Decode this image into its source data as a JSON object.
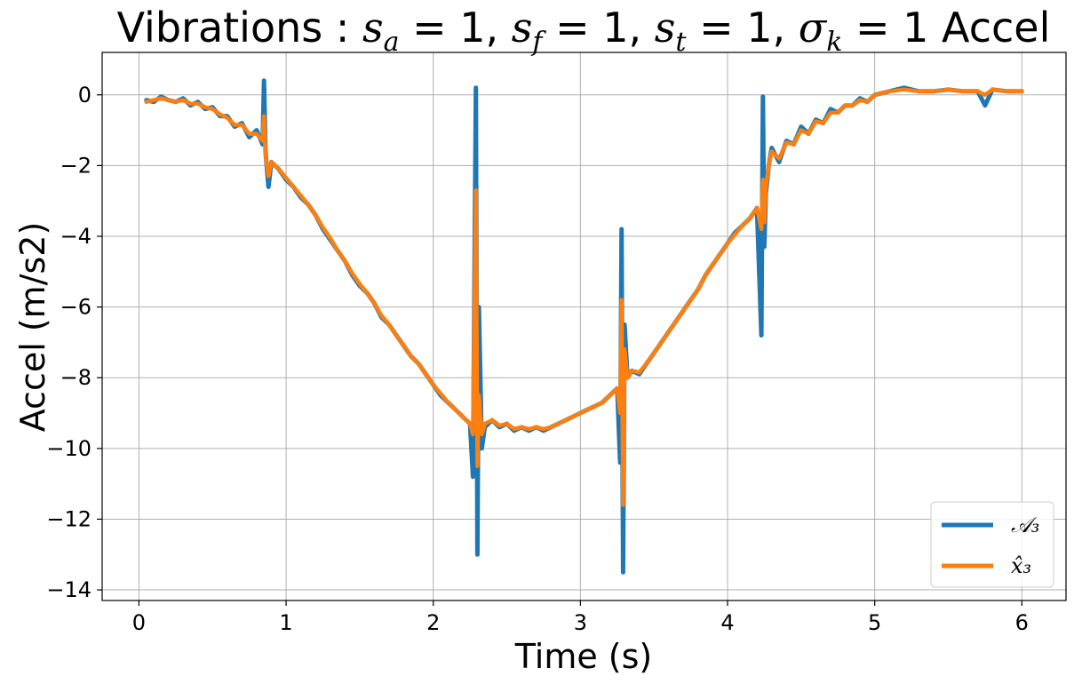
{
  "chart_data": {
    "type": "line",
    "title": {
      "prefix": "Vibrations : ",
      "params": [
        {
          "sym": "s",
          "sub": "a",
          "val": "1"
        },
        {
          "sym": "s",
          "sub": "f",
          "val": "1"
        },
        {
          "sym": "s",
          "sub": "t",
          "val": "1"
        },
        {
          "sym": "σ",
          "sub": "k",
          "val": "1"
        }
      ],
      "suffix": " Accel"
    },
    "xlabel": "Time (s)",
    "ylabel": "Accel (m/s2)",
    "xlim": [
      -0.25,
      6.3
    ],
    "ylim": [
      -14.3,
      1.2
    ],
    "xticks": [
      0,
      1,
      2,
      3,
      4,
      5,
      6
    ],
    "yticks": [
      0,
      -2,
      -4,
      -6,
      -8,
      -10,
      -12,
      -14
    ],
    "xtick_labels": [
      "0",
      "1",
      "2",
      "3",
      "4",
      "5",
      "6"
    ],
    "ytick_labels": [
      "0",
      "−2",
      "−4",
      "−6",
      "−8",
      "−10",
      "−12",
      "−14"
    ],
    "grid": true,
    "legend_position": "bottom-right",
    "series": [
      {
        "name": "𝒜₃",
        "color": "#1f77b4",
        "x": [
          0.05,
          0.1,
          0.15,
          0.2,
          0.25,
          0.3,
          0.35,
          0.4,
          0.45,
          0.5,
          0.55,
          0.6,
          0.65,
          0.7,
          0.75,
          0.8,
          0.84,
          0.85,
          0.86,
          0.88,
          0.9,
          0.95,
          1.0,
          1.05,
          1.1,
          1.15,
          1.2,
          1.25,
          1.3,
          1.35,
          1.4,
          1.45,
          1.5,
          1.55,
          1.6,
          1.65,
          1.7,
          1.75,
          1.8,
          1.85,
          1.9,
          1.95,
          2.0,
          2.05,
          2.1,
          2.15,
          2.2,
          2.25,
          2.27,
          2.29,
          2.3,
          2.31,
          2.33,
          2.35,
          2.4,
          2.45,
          2.5,
          2.55,
          2.6,
          2.65,
          2.7,
          2.75,
          2.8,
          2.85,
          2.9,
          2.95,
          3.0,
          3.05,
          3.1,
          3.15,
          3.2,
          3.25,
          3.27,
          3.28,
          3.29,
          3.3,
          3.32,
          3.35,
          3.4,
          3.45,
          3.5,
          3.55,
          3.6,
          3.65,
          3.7,
          3.75,
          3.8,
          3.85,
          3.9,
          3.95,
          4.0,
          4.05,
          4.1,
          4.15,
          4.2,
          4.23,
          4.24,
          4.25,
          4.26,
          4.28,
          4.3,
          4.35,
          4.4,
          4.45,
          4.5,
          4.55,
          4.6,
          4.65,
          4.7,
          4.75,
          4.8,
          4.85,
          4.9,
          4.95,
          5.0,
          5.1,
          5.2,
          5.3,
          5.4,
          5.5,
          5.6,
          5.7,
          5.75,
          5.8,
          5.9,
          6.0
        ],
        "y": [
          -0.15,
          -0.2,
          -0.05,
          -0.15,
          -0.2,
          -0.1,
          -0.3,
          -0.2,
          -0.4,
          -0.35,
          -0.6,
          -0.6,
          -0.9,
          -0.8,
          -1.2,
          -1.0,
          -1.4,
          0.4,
          -1.6,
          -2.6,
          -1.9,
          -2.1,
          -2.4,
          -2.6,
          -2.9,
          -3.1,
          -3.4,
          -3.8,
          -4.1,
          -4.4,
          -4.7,
          -5.1,
          -5.4,
          -5.6,
          -5.9,
          -6.3,
          -6.5,
          -6.8,
          -7.1,
          -7.4,
          -7.6,
          -7.9,
          -8.2,
          -8.5,
          -8.7,
          -8.9,
          -9.1,
          -9.3,
          -10.8,
          0.2,
          -13.0,
          -6.0,
          -10.0,
          -9.4,
          -9.2,
          -9.4,
          -9.3,
          -9.5,
          -9.4,
          -9.5,
          -9.4,
          -9.5,
          -9.4,
          -9.3,
          -9.2,
          -9.1,
          -9.0,
          -8.9,
          -8.8,
          -8.7,
          -8.5,
          -8.3,
          -10.4,
          -3.8,
          -13.5,
          -6.5,
          -8.0,
          -7.8,
          -7.9,
          -7.6,
          -7.3,
          -7.0,
          -6.7,
          -6.4,
          -6.1,
          -5.8,
          -5.5,
          -5.1,
          -4.8,
          -4.5,
          -4.2,
          -3.9,
          -3.7,
          -3.5,
          -3.2,
          -6.8,
          -0.05,
          -4.3,
          -2.8,
          -2.0,
          -1.5,
          -1.9,
          -1.3,
          -1.4,
          -0.9,
          -1.1,
          -0.7,
          -0.8,
          -0.4,
          -0.5,
          -0.3,
          -0.3,
          -0.1,
          -0.2,
          0.0,
          0.1,
          0.2,
          0.1,
          0.1,
          0.15,
          0.1,
          0.1,
          -0.3,
          0.15,
          0.1,
          0.1
        ]
      },
      {
        "name": "x̂₃",
        "color": "#ff7f0e",
        "x": [
          0.05,
          0.1,
          0.15,
          0.2,
          0.25,
          0.3,
          0.35,
          0.4,
          0.45,
          0.5,
          0.55,
          0.6,
          0.65,
          0.7,
          0.75,
          0.8,
          0.84,
          0.85,
          0.86,
          0.88,
          0.9,
          0.95,
          1.0,
          1.05,
          1.1,
          1.15,
          1.2,
          1.25,
          1.3,
          1.35,
          1.4,
          1.45,
          1.5,
          1.55,
          1.6,
          1.65,
          1.7,
          1.75,
          1.8,
          1.85,
          1.9,
          1.95,
          2.0,
          2.05,
          2.1,
          2.15,
          2.2,
          2.25,
          2.27,
          2.29,
          2.3,
          2.31,
          2.33,
          2.35,
          2.4,
          2.45,
          2.5,
          2.55,
          2.6,
          2.65,
          2.7,
          2.75,
          2.8,
          2.85,
          2.9,
          2.95,
          3.0,
          3.05,
          3.1,
          3.15,
          3.2,
          3.25,
          3.27,
          3.28,
          3.29,
          3.3,
          3.32,
          3.35,
          3.4,
          3.45,
          3.5,
          3.55,
          3.6,
          3.65,
          3.7,
          3.75,
          3.8,
          3.85,
          3.9,
          3.95,
          4.0,
          4.05,
          4.1,
          4.15,
          4.2,
          4.23,
          4.24,
          4.25,
          4.26,
          4.28,
          4.3,
          4.35,
          4.4,
          4.45,
          4.5,
          4.55,
          4.6,
          4.65,
          4.7,
          4.75,
          4.8,
          4.85,
          4.9,
          4.95,
          5.0,
          5.1,
          5.2,
          5.3,
          5.4,
          5.5,
          5.6,
          5.7,
          5.75,
          5.8,
          5.9,
          6.0
        ],
        "y": [
          -0.2,
          -0.15,
          -0.1,
          -0.15,
          -0.2,
          -0.15,
          -0.25,
          -0.25,
          -0.35,
          -0.4,
          -0.55,
          -0.65,
          -0.85,
          -0.85,
          -1.1,
          -1.1,
          -1.3,
          -0.6,
          -1.7,
          -2.3,
          -1.9,
          -2.1,
          -2.35,
          -2.6,
          -2.85,
          -3.1,
          -3.4,
          -3.75,
          -4.05,
          -4.4,
          -4.7,
          -5.05,
          -5.35,
          -5.6,
          -5.9,
          -6.25,
          -6.5,
          -6.8,
          -7.1,
          -7.4,
          -7.6,
          -7.9,
          -8.2,
          -8.45,
          -8.7,
          -8.9,
          -9.1,
          -9.3,
          -9.6,
          -2.7,
          -10.5,
          -8.5,
          -9.6,
          -9.3,
          -9.2,
          -9.35,
          -9.3,
          -9.45,
          -9.4,
          -9.45,
          -9.4,
          -9.45,
          -9.4,
          -9.3,
          -9.2,
          -9.1,
          -9.0,
          -8.9,
          -8.8,
          -8.7,
          -8.5,
          -8.3,
          -9.0,
          -5.8,
          -11.6,
          -7.2,
          -8.0,
          -7.8,
          -7.85,
          -7.6,
          -7.3,
          -7.0,
          -6.7,
          -6.4,
          -6.1,
          -5.8,
          -5.5,
          -5.1,
          -4.8,
          -4.5,
          -4.2,
          -3.95,
          -3.7,
          -3.5,
          -3.2,
          -3.8,
          -2.4,
          -3.6,
          -2.6,
          -2.0,
          -1.6,
          -1.8,
          -1.35,
          -1.4,
          -1.0,
          -1.1,
          -0.75,
          -0.8,
          -0.5,
          -0.5,
          -0.3,
          -0.3,
          -0.15,
          -0.2,
          0.0,
          0.1,
          0.15,
          0.1,
          0.1,
          0.15,
          0.1,
          0.1,
          0.0,
          0.15,
          0.1,
          0.1
        ]
      }
    ]
  }
}
